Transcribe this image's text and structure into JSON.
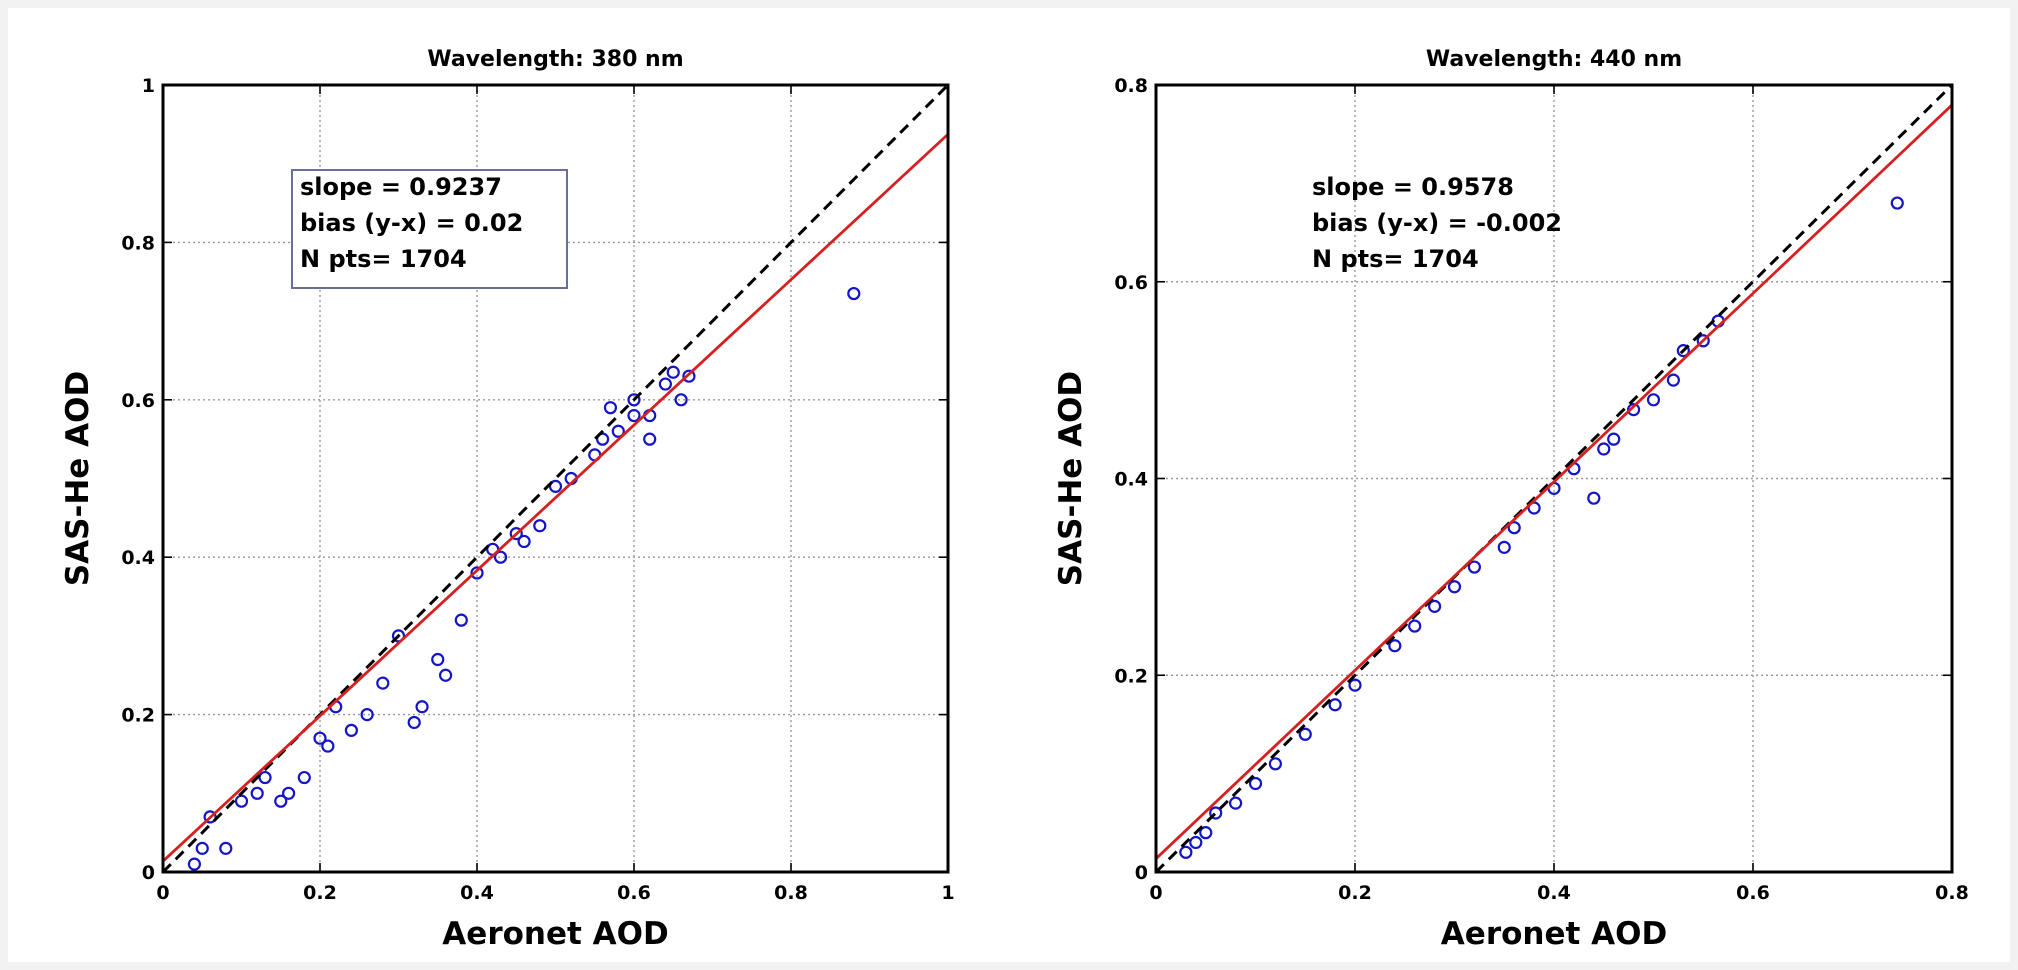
{
  "colors": {
    "points": "#1515c8",
    "fit_line": "#d62020",
    "one_to_one_line": "#000000",
    "grid": "#9a9a9a",
    "stats_box_border": "#6a6f9a"
  },
  "chart_data": [
    {
      "type": "scatter",
      "title": "Wavelength: 380 nm",
      "xlabel": "Aeronet AOD",
      "ylabel": "SAS-He AOD",
      "xlim": [
        0,
        1
      ],
      "ylim": [
        0,
        1
      ],
      "xticks": [
        0,
        0.2,
        0.4,
        0.6,
        0.8,
        1
      ],
      "yticks": [
        0,
        0.2,
        0.4,
        0.6,
        0.8,
        1
      ],
      "xtick_labels": [
        "0",
        "0.2",
        "0.4",
        "0.6",
        "0.8",
        "1"
      ],
      "ytick_labels": [
        "0",
        "0.2",
        "0.4",
        "0.6",
        "0.8",
        "1"
      ],
      "grid": true,
      "stats_box": true,
      "stats": [
        "slope = 0.9237",
        "bias (y-x) =  0.02",
        "N pts= 1704"
      ],
      "fit_line": {
        "slope": 0.9237,
        "intercept": 0.0137
      },
      "one_to_one": true,
      "points": [
        [
          0.88,
          0.735
        ],
        [
          0.67,
          0.63
        ],
        [
          0.66,
          0.6
        ],
        [
          0.65,
          0.635
        ],
        [
          0.64,
          0.62
        ],
        [
          0.62,
          0.58
        ],
        [
          0.62,
          0.55
        ],
        [
          0.6,
          0.6
        ],
        [
          0.6,
          0.58
        ],
        [
          0.58,
          0.56
        ],
        [
          0.57,
          0.59
        ],
        [
          0.56,
          0.55
        ],
        [
          0.55,
          0.53
        ],
        [
          0.52,
          0.5
        ],
        [
          0.5,
          0.49
        ],
        [
          0.48,
          0.44
        ],
        [
          0.46,
          0.42
        ],
        [
          0.45,
          0.43
        ],
        [
          0.43,
          0.4
        ],
        [
          0.42,
          0.41
        ],
        [
          0.4,
          0.38
        ],
        [
          0.38,
          0.32
        ],
        [
          0.36,
          0.25
        ],
        [
          0.35,
          0.27
        ],
        [
          0.33,
          0.21
        ],
        [
          0.32,
          0.19
        ],
        [
          0.3,
          0.3
        ],
        [
          0.28,
          0.24
        ],
        [
          0.26,
          0.2
        ],
        [
          0.24,
          0.18
        ],
        [
          0.22,
          0.21
        ],
        [
          0.21,
          0.16
        ],
        [
          0.2,
          0.17
        ],
        [
          0.18,
          0.12
        ],
        [
          0.16,
          0.1
        ],
        [
          0.15,
          0.09
        ],
        [
          0.13,
          0.12
        ],
        [
          0.12,
          0.1
        ],
        [
          0.1,
          0.09
        ],
        [
          0.08,
          0.03
        ],
        [
          0.06,
          0.07
        ],
        [
          0.05,
          0.03
        ],
        [
          0.04,
          0.01
        ]
      ]
    },
    {
      "type": "scatter",
      "title": "Wavelength: 440 nm",
      "xlabel": "Aeronet AOD",
      "ylabel": "SAS-He AOD",
      "xlim": [
        0,
        0.8
      ],
      "ylim": [
        0,
        0.8
      ],
      "xticks": [
        0,
        0.2,
        0.4,
        0.6,
        0.8
      ],
      "yticks": [
        0,
        0.2,
        0.4,
        0.6,
        0.8
      ],
      "xtick_labels": [
        "0",
        "0.2",
        "0.4",
        "0.6",
        "0.8"
      ],
      "ytick_labels": [
        "0",
        "0.2",
        "0.4",
        "0.6",
        "0.8"
      ],
      "grid": true,
      "stats_box": false,
      "stats": [
        "slope = 0.9578",
        "bias (y-x) =  -0.002",
        "N pts= 1704"
      ],
      "fit_line": {
        "slope": 0.9578,
        "intercept": 0.0135
      },
      "one_to_one": true,
      "points": [
        [
          0.745,
          0.68
        ],
        [
          0.565,
          0.56
        ],
        [
          0.55,
          0.54
        ],
        [
          0.53,
          0.53
        ],
        [
          0.52,
          0.5
        ],
        [
          0.5,
          0.48
        ],
        [
          0.48,
          0.47
        ],
        [
          0.46,
          0.44
        ],
        [
          0.45,
          0.43
        ],
        [
          0.44,
          0.38
        ],
        [
          0.42,
          0.41
        ],
        [
          0.4,
          0.39
        ],
        [
          0.38,
          0.37
        ],
        [
          0.36,
          0.35
        ],
        [
          0.35,
          0.33
        ],
        [
          0.32,
          0.31
        ],
        [
          0.3,
          0.29
        ],
        [
          0.28,
          0.27
        ],
        [
          0.26,
          0.25
        ],
        [
          0.24,
          0.23
        ],
        [
          0.2,
          0.19
        ],
        [
          0.18,
          0.17
        ],
        [
          0.15,
          0.14
        ],
        [
          0.12,
          0.11
        ],
        [
          0.1,
          0.09
        ],
        [
          0.08,
          0.07
        ],
        [
          0.06,
          0.06
        ],
        [
          0.05,
          0.04
        ],
        [
          0.04,
          0.03
        ],
        [
          0.03,
          0.02
        ]
      ]
    }
  ]
}
